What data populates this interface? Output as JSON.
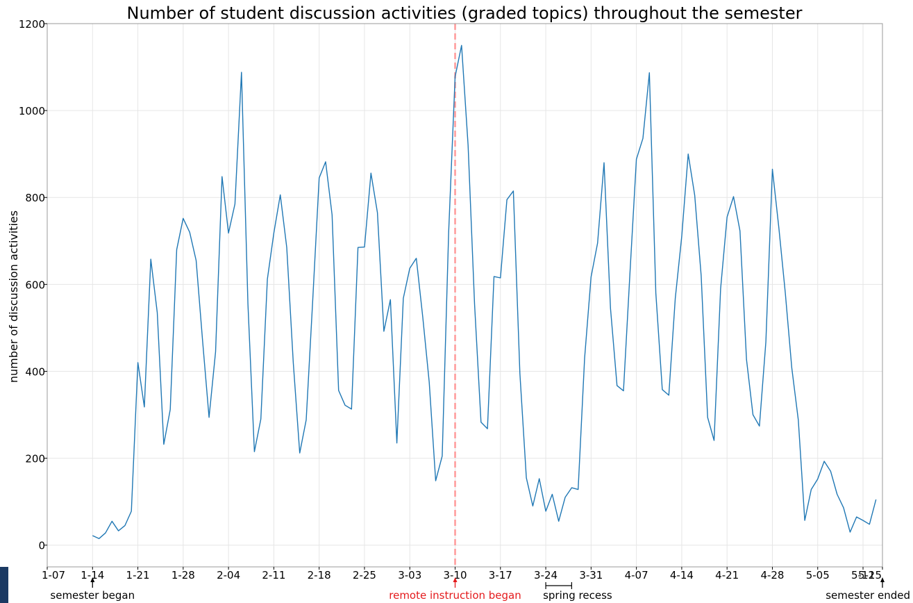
{
  "chart_data": {
    "type": "line",
    "title": "Number of student discussion activities (graded topics) throughout the semester",
    "xlabel": "",
    "ylabel": "number of discussion activities",
    "x_axis_type": "day-of-year",
    "xlim": [
      7,
      136
    ],
    "ylim": [
      -50,
      1200
    ],
    "yticks": [
      0,
      200,
      400,
      600,
      800,
      1000,
      1200
    ],
    "xticks": [
      {
        "day": 7,
        "label": "1-07"
      },
      {
        "day": 14,
        "label": "1-14"
      },
      {
        "day": 21,
        "label": "1-21"
      },
      {
        "day": 28,
        "label": "1-28"
      },
      {
        "day": 35,
        "label": "2-04"
      },
      {
        "day": 42,
        "label": "2-11"
      },
      {
        "day": 49,
        "label": "2-18"
      },
      {
        "day": 56,
        "label": "2-25"
      },
      {
        "day": 63,
        "label": "3-03"
      },
      {
        "day": 70,
        "label": "3-10"
      },
      {
        "day": 77,
        "label": "3-17"
      },
      {
        "day": 84,
        "label": "3-24"
      },
      {
        "day": 91,
        "label": "3-31"
      },
      {
        "day": 98,
        "label": "4-07"
      },
      {
        "day": 105,
        "label": "4-14"
      },
      {
        "day": 112,
        "label": "4-21"
      },
      {
        "day": 119,
        "label": "4-28"
      },
      {
        "day": 126,
        "label": "5-05"
      },
      {
        "day": 133,
        "label": "5-12"
      },
      {
        "day": 136,
        "label": "5-15"
      }
    ],
    "grid": true,
    "line_color": "#1f77b4",
    "series": [
      {
        "name": "",
        "x": [
          14,
          15,
          16,
          17,
          18,
          19,
          20,
          21,
          22,
          23,
          24,
          25,
          26,
          27,
          28,
          29,
          30,
          31,
          32,
          33,
          34,
          35,
          36,
          37,
          38,
          39,
          40,
          41,
          42,
          43,
          44,
          45,
          46,
          47,
          48,
          49,
          50,
          51,
          52,
          53,
          54,
          55,
          56,
          57,
          58,
          59,
          60,
          61,
          62,
          63,
          64,
          65,
          66,
          67,
          68,
          69,
          70,
          71,
          72,
          73,
          74,
          75,
          76,
          77,
          78,
          79,
          80,
          81,
          82,
          83,
          84,
          85,
          86,
          87,
          88,
          89,
          90,
          91,
          92,
          93,
          94,
          95,
          96,
          97,
          98,
          99,
          100,
          101,
          102,
          103,
          104,
          105,
          106,
          107,
          108,
          109,
          110,
          111,
          112,
          113,
          114,
          115,
          116,
          117,
          118,
          119,
          120,
          121,
          122,
          123,
          124,
          125,
          126,
          127,
          128,
          129,
          130,
          131,
          132,
          133,
          134,
          135
        ],
        "y": [
          22,
          15,
          28,
          55,
          33,
          45,
          78,
          420,
          318,
          658,
          535,
          232,
          312,
          680,
          752,
          720,
          655,
          470,
          294,
          445,
          848,
          718,
          785,
          1088,
          555,
          215,
          290,
          612,
          718,
          806,
          685,
          420,
          212,
          288,
          560,
          845,
          882,
          760,
          356,
          322,
          313,
          685,
          686,
          856,
          765,
          492,
          565,
          235,
          568,
          637,
          660,
          525,
          375,
          148,
          205,
          720,
          1078,
          1150,
          920,
          555,
          283,
          268,
          618,
          615,
          795,
          815,
          395,
          155,
          90,
          153,
          78,
          117,
          55,
          110,
          132,
          128,
          430,
          617,
          695,
          880,
          545,
          367,
          355,
          625,
          888,
          936,
          1087,
          580,
          358,
          345,
          568,
          710,
          900,
          805,
          620,
          294,
          241,
          590,
          755,
          802,
          723,
          427,
          300,
          274,
          468,
          865,
          730,
          580,
          408,
          288,
          57,
          128,
          152,
          193,
          170,
          117,
          86,
          30,
          65,
          57,
          48,
          105
        ]
      }
    ],
    "vline": {
      "day": 70,
      "color": "#ff9a9a"
    },
    "annotations": [
      {
        "day": 14,
        "label": "semester began",
        "color": "#000000",
        "kind": "arrow"
      },
      {
        "day": 70,
        "label": "remote instruction began",
        "color": "#e41a1c",
        "kind": "arrow"
      },
      {
        "day_start": 84,
        "day_end": 88,
        "label": "spring recess",
        "color": "#000000",
        "kind": "bracket"
      },
      {
        "day": 136,
        "label": "semester ended",
        "color": "#000000",
        "kind": "arrow"
      }
    ]
  }
}
